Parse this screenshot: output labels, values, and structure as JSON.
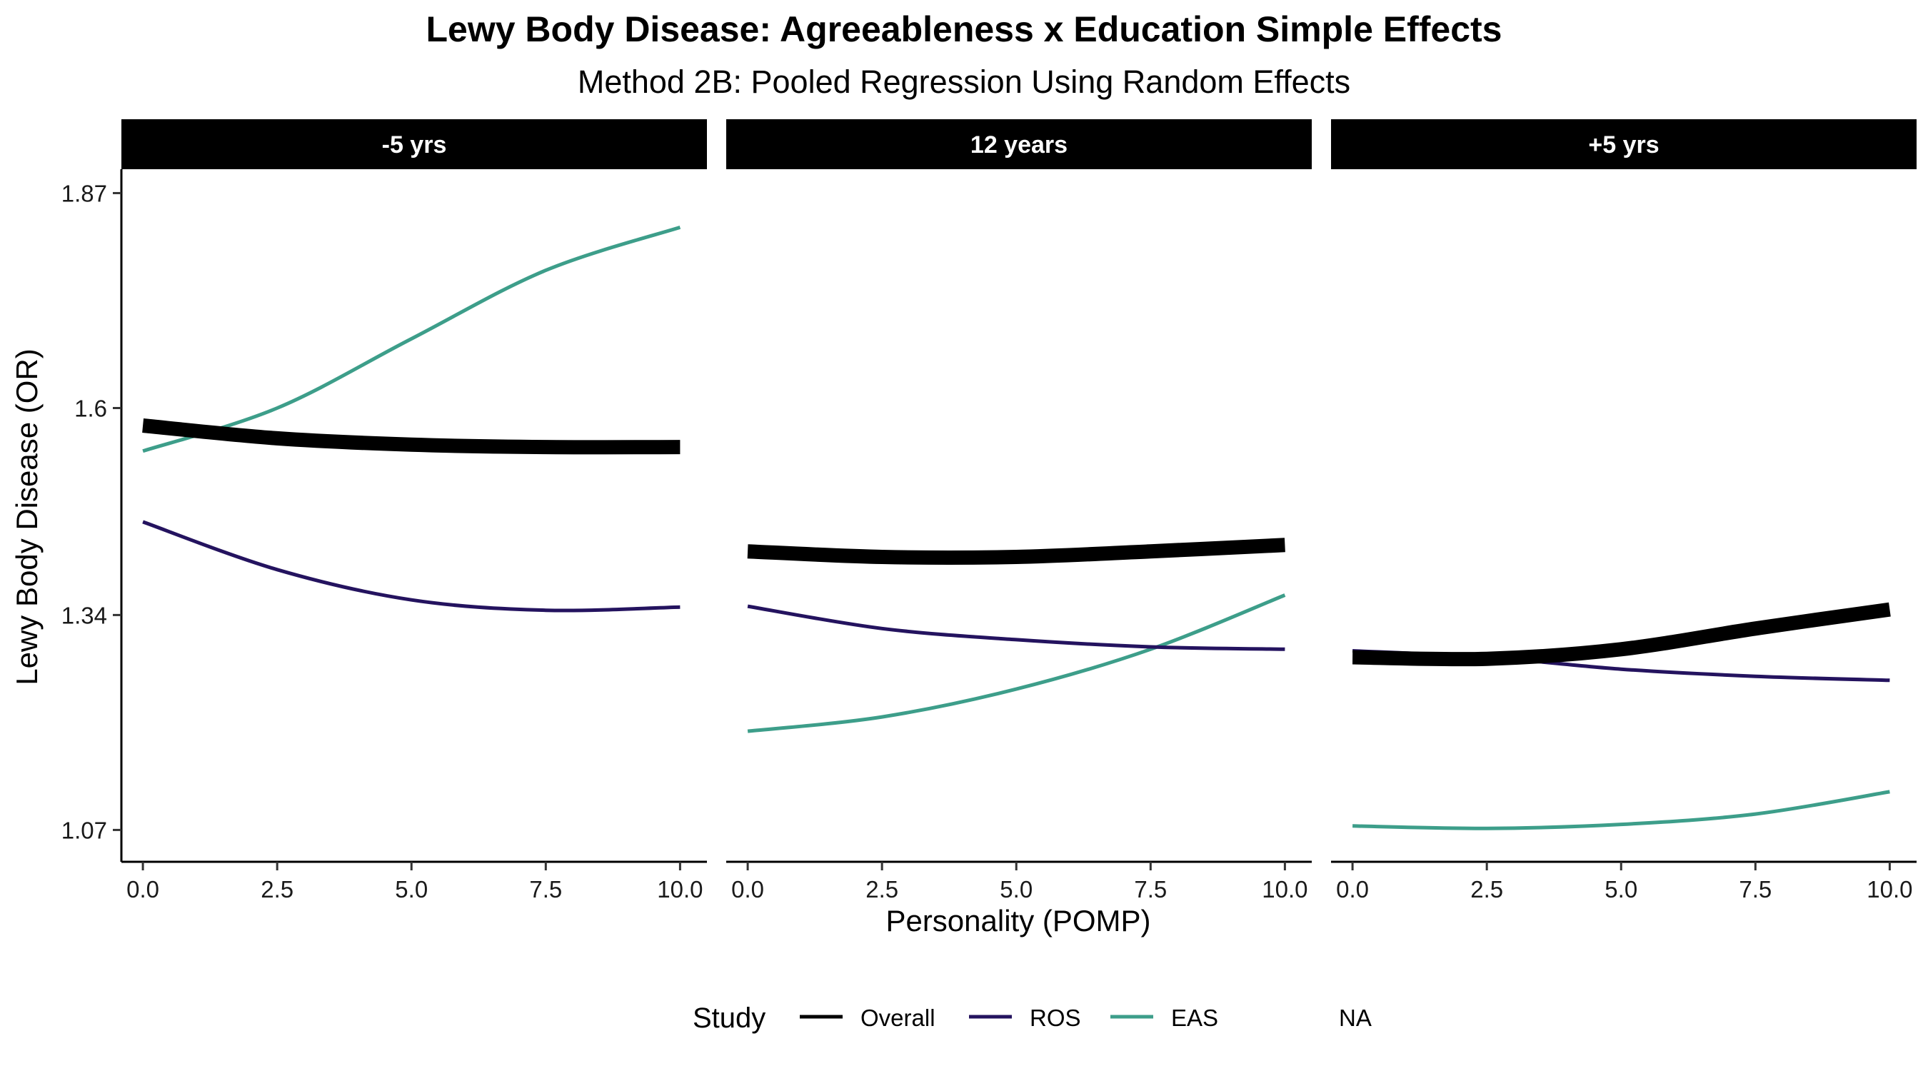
{
  "chart_data": {
    "type": "line",
    "title": "Lewy Body Disease: Agreeableness x Education Simple Effects",
    "subtitle": "Method 2B: Pooled Regression Using Random Effects",
    "xlabel": "Personality (POMP)",
    "ylabel": "Lewy Body Disease (OR)",
    "x_ticks": [
      "0.0",
      "2.5",
      "5.0",
      "7.5",
      "10.0"
    ],
    "y_ticks": [
      "1.07",
      "1.34",
      "1.6",
      "1.87"
    ],
    "xlim": [
      -0.4,
      10.5
    ],
    "ylim": [
      1.03,
      1.9
    ],
    "grid": false,
    "legend_title": "Study",
    "legend_position": "bottom",
    "legend": [
      {
        "name": "Overall",
        "color": "#000000"
      },
      {
        "name": "ROS",
        "color": "#24135f"
      },
      {
        "name": "EAS",
        "color": "#3d9e8a"
      },
      {
        "name": "NA",
        "color": null
      }
    ],
    "series_colors": {
      "Overall": "#000000",
      "ROS": "#24135f",
      "EAS": "#3d9e8a"
    },
    "series_widths": {
      "Overall": "thick",
      "ROS": "thin",
      "EAS": "thin"
    },
    "panels": [
      {
        "label": "-5 yrs",
        "series": [
          {
            "name": "EAS",
            "x": [
              0,
              2.5,
              5,
              7.5,
              10
            ],
            "y": [
              1.546,
              1.6,
              1.687,
              1.773,
              1.827
            ]
          },
          {
            "name": "ROS",
            "x": [
              0,
              2.5,
              5,
              7.5,
              10
            ],
            "y": [
              1.457,
              1.397,
              1.359,
              1.346,
              1.35
            ]
          },
          {
            "name": "Overall",
            "x": [
              0,
              2.5,
              5,
              7.5,
              10
            ],
            "y": [
              1.578,
              1.562,
              1.554,
              1.551,
              1.551
            ]
          }
        ]
      },
      {
        "label": "12 years",
        "series": [
          {
            "name": "EAS",
            "x": [
              0,
              2.5,
              5,
              7.5,
              10
            ],
            "y": [
              1.194,
              1.212,
              1.247,
              1.297,
              1.365
            ]
          },
          {
            "name": "ROS",
            "x": [
              0,
              2.5,
              5,
              7.5,
              10
            ],
            "y": [
              1.351,
              1.323,
              1.309,
              1.3,
              1.297
            ]
          },
          {
            "name": "Overall",
            "x": [
              0,
              2.5,
              5,
              7.5,
              10
            ],
            "y": [
              1.42,
              1.413,
              1.413,
              1.42,
              1.428
            ]
          }
        ]
      },
      {
        "label": "+5 yrs",
        "series": [
          {
            "name": "EAS",
            "x": [
              0,
              2.5,
              5,
              7.5,
              10
            ],
            "y": [
              1.075,
              1.072,
              1.077,
              1.09,
              1.118
            ]
          },
          {
            "name": "ROS",
            "x": [
              0,
              2.5,
              5,
              7.5,
              10
            ],
            "y": [
              1.295,
              1.287,
              1.272,
              1.263,
              1.258
            ]
          },
          {
            "name": "Overall",
            "x": [
              0,
              2.5,
              5,
              7.5,
              10
            ],
            "y": [
              1.287,
              1.285,
              1.297,
              1.323,
              1.347
            ]
          }
        ]
      }
    ]
  }
}
